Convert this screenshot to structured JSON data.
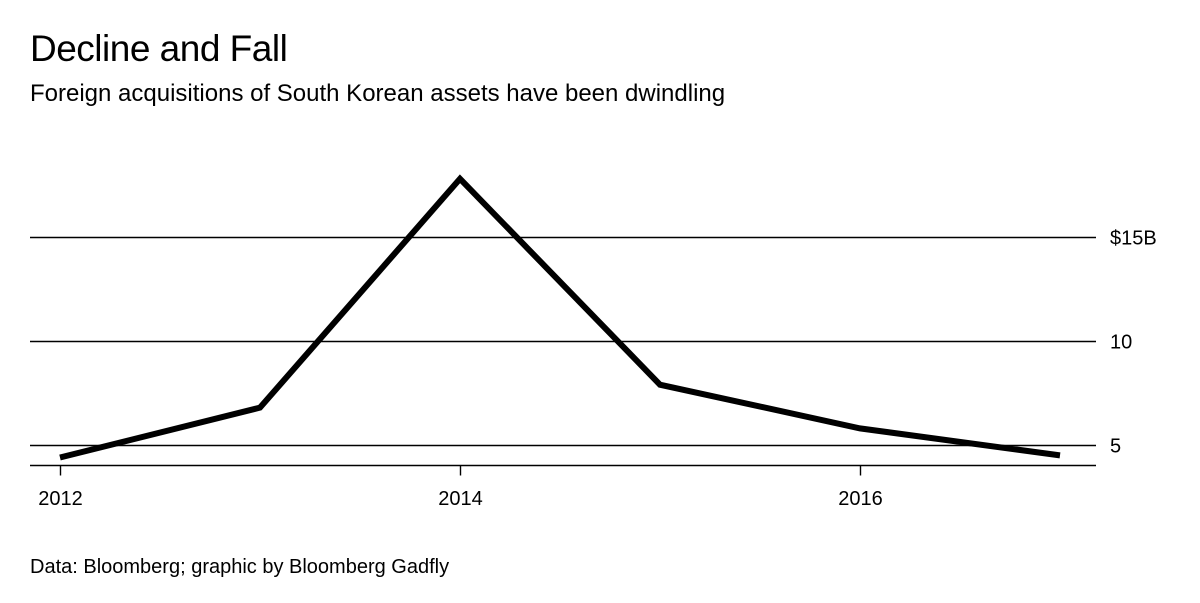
{
  "header": {
    "title": "Decline and Fall",
    "subtitle": "Foreign acquisitions of South Korean assets have been dwindling"
  },
  "footer": {
    "source": "Data: Bloomberg; graphic by Bloomberg Gadfly"
  },
  "colors": {
    "line": "#000000",
    "grid": "#000000",
    "background": "#ffffff"
  },
  "chart_data": {
    "type": "line",
    "title": "Decline and Fall",
    "subtitle": "Foreign acquisitions of South Korean assets have been dwindling",
    "xlabel": "",
    "ylabel": "",
    "x": [
      2012,
      2013,
      2014,
      2015,
      2016,
      2017
    ],
    "series": [
      {
        "name": "Foreign acquisitions",
        "values": [
          4.4,
          6.8,
          17.8,
          7.9,
          5.8,
          4.5
        ]
      }
    ],
    "xlim": [
      2012,
      2017.03
    ],
    "ylim": [
      4.04,
      18.85
    ],
    "x_ticks": [
      {
        "value": 2012,
        "label": "2012"
      },
      {
        "value": 2014,
        "label": "2014"
      },
      {
        "value": 2016,
        "label": "2016"
      }
    ],
    "y_ticks": [
      {
        "value": 5,
        "label": "5"
      },
      {
        "value": 10,
        "label": "10"
      },
      {
        "value": 15,
        "label": "$15B"
      }
    ],
    "y_axis_side": "right",
    "grid": true
  }
}
